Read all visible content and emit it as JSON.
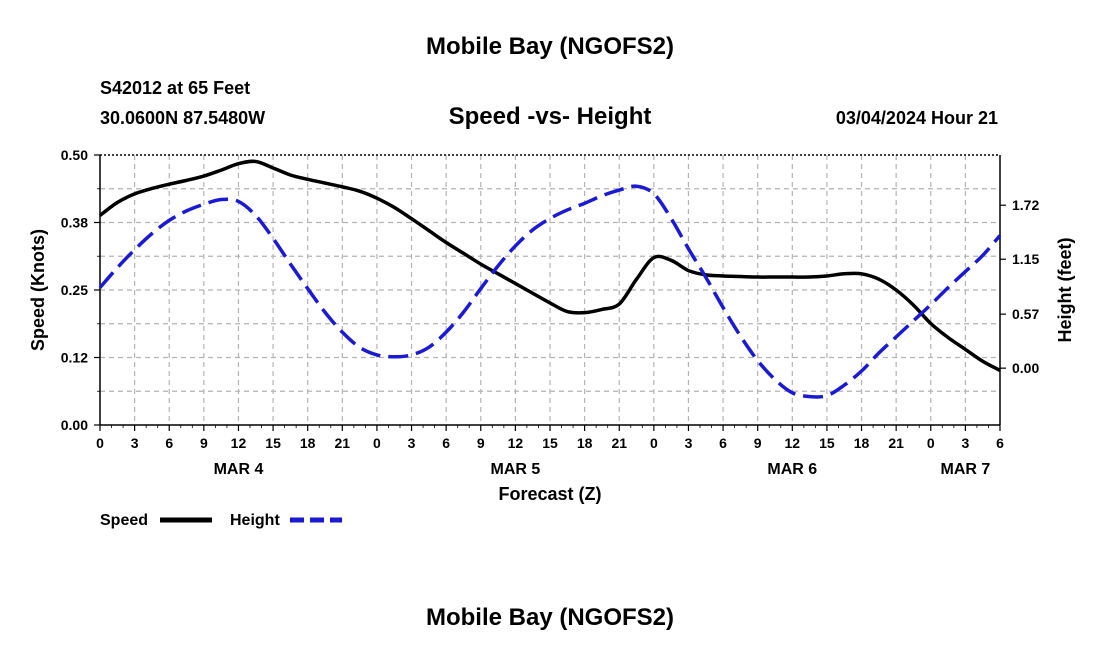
{
  "header": {
    "title": "Mobile Bay (NGOFS2)",
    "station": "S42012 at 65 Feet",
    "location": "30.0600N  87.5480W",
    "datetime": "03/04/2024 Hour 21"
  },
  "footer": {
    "title": "Mobile Bay (NGOFS2)"
  },
  "colors": {
    "speed": "#000000",
    "height": "#1a1ad4",
    "grid": "#b4b4b4"
  },
  "chart_data": {
    "type": "line",
    "title": "Speed -vs- Height",
    "xlabel": "Forecast (Z)",
    "ylabel": "Speed (Knots)",
    "y2label": "Height (feet)",
    "x_unit": "hours since 2024-03-04 00Z",
    "xlim": [
      0,
      78
    ],
    "ylim": [
      0,
      0.5
    ],
    "y2lim": [
      -0.6,
      2.25
    ],
    "x_ticks": [
      0,
      3,
      6,
      9,
      12,
      15,
      18,
      21,
      24,
      27,
      30,
      33,
      36,
      39,
      42,
      45,
      48,
      51,
      54,
      57,
      60,
      63,
      66,
      69,
      72,
      75,
      78
    ],
    "x_tick_labels": [
      "0",
      "3",
      "6",
      "9",
      "12",
      "15",
      "18",
      "21",
      "0",
      "3",
      "6",
      "9",
      "12",
      "15",
      "18",
      "21",
      "0",
      "3",
      "6",
      "9",
      "12",
      "15",
      "18",
      "21",
      "0",
      "3",
      "6"
    ],
    "y_ticks": [
      0,
      0.125,
      0.25,
      0.375,
      0.5
    ],
    "y_tick_labels": [
      "0.00",
      "0.12",
      "0.25",
      "0.38",
      "0.50"
    ],
    "y2_ticks": [
      0,
      0.57,
      1.15,
      1.72
    ],
    "y2_tick_labels": [
      "0.00",
      "0.57",
      "1.15",
      "1.72"
    ],
    "day_labels": [
      {
        "x": 12,
        "label": "MAR 4"
      },
      {
        "x": 36,
        "label": "MAR 5"
      },
      {
        "x": 60,
        "label": "MAR 6"
      },
      {
        "x": 75,
        "label": "MAR 7"
      }
    ],
    "grid": true,
    "legend_position": "bottom-left",
    "series": [
      {
        "name": "Speed",
        "axis": "left",
        "style": "solid",
        "x": [
          0,
          1.5,
          3,
          4.5,
          6,
          7.5,
          9,
          10.5,
          12,
          13.5,
          15,
          16.5,
          18,
          19.5,
          21,
          22.5,
          24,
          25.5,
          27,
          28.5,
          30,
          31.5,
          33,
          34.5,
          36,
          37.5,
          39,
          40.5,
          42,
          43.5,
          45,
          46.5,
          48,
          49.5,
          51,
          52.5,
          54,
          55.5,
          57,
          58.5,
          60,
          61.5,
          63,
          64.5,
          66,
          67.5,
          69,
          70.5,
          72,
          73.5,
          75,
          76.5,
          78
        ],
        "values": [
          0.388,
          0.412,
          0.428,
          0.438,
          0.446,
          0.453,
          0.461,
          0.472,
          0.484,
          0.488,
          0.476,
          0.463,
          0.455,
          0.448,
          0.441,
          0.433,
          0.42,
          0.403,
          0.382,
          0.36,
          0.338,
          0.318,
          0.298,
          0.28,
          0.262,
          0.244,
          0.226,
          0.21,
          0.208,
          0.214,
          0.224,
          0.27,
          0.31,
          0.305,
          0.286,
          0.278,
          0.276,
          0.275,
          0.274,
          0.274,
          0.274,
          0.274,
          0.276,
          0.28,
          0.28,
          0.27,
          0.25,
          0.222,
          0.188,
          0.162,
          0.14,
          0.118,
          0.101
        ]
      },
      {
        "name": "Height",
        "axis": "right",
        "style": "dashed",
        "x": [
          0,
          1.5,
          3,
          4.5,
          6,
          7.5,
          9,
          10.5,
          12,
          13.5,
          15,
          16.5,
          18,
          19.5,
          21,
          22.5,
          24,
          25.5,
          27,
          28.5,
          30,
          31.5,
          33,
          34.5,
          36,
          37.5,
          39,
          40.5,
          42,
          43.5,
          45,
          46.5,
          48,
          49.5,
          51,
          52.5,
          54,
          55.5,
          57,
          58.5,
          60,
          61.5,
          63,
          64.5,
          66,
          67.5,
          69,
          70.5,
          72,
          73.5,
          75,
          76.5,
          78
        ],
        "values": [
          0.85,
          1.06,
          1.25,
          1.42,
          1.56,
          1.66,
          1.73,
          1.78,
          1.76,
          1.61,
          1.37,
          1.1,
          0.84,
          0.59,
          0.38,
          0.22,
          0.14,
          0.12,
          0.14,
          0.22,
          0.38,
          0.59,
          0.84,
          1.08,
          1.29,
          1.46,
          1.58,
          1.67,
          1.74,
          1.82,
          1.88,
          1.92,
          1.84,
          1.58,
          1.26,
          0.96,
          0.64,
          0.34,
          0.08,
          -0.12,
          -0.26,
          -0.3,
          -0.29,
          -0.18,
          -0.03,
          0.16,
          0.33,
          0.5,
          0.67,
          0.85,
          1.02,
          1.19,
          1.4
        ]
      }
    ]
  }
}
